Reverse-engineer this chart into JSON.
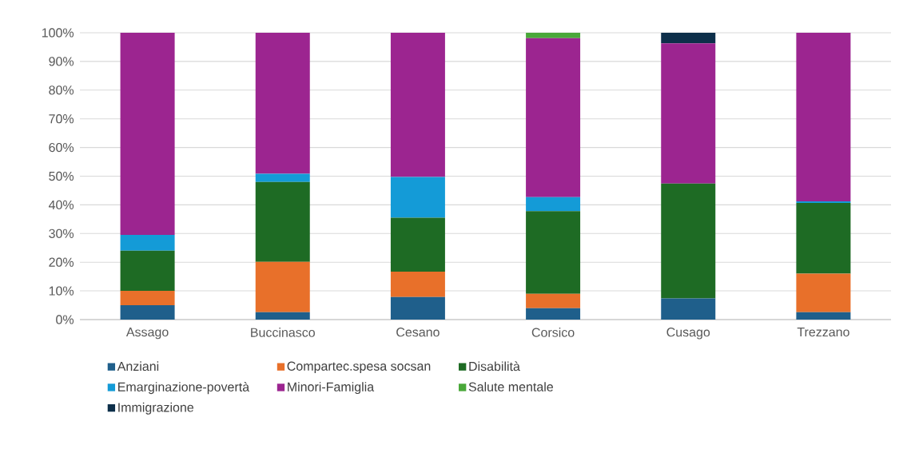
{
  "chart_data": {
    "type": "bar",
    "stacked": true,
    "categories": [
      "Assago",
      "Buccinasco",
      "Cesano",
      "Corsico",
      "Cusago",
      "Trezzano"
    ],
    "series": [
      {
        "name": "Anziani",
        "color": "#1f5f8b",
        "values": [
          5,
          2.6,
          7.9,
          4,
          7.4,
          2.6
        ]
      },
      {
        "name": "Compartec.spesa socsan",
        "color": "#e8702a",
        "values": [
          5,
          17.5,
          8.8,
          5,
          0,
          13.4
        ]
      },
      {
        "name": "Disabilità",
        "color": "#1e6b24",
        "values": [
          14,
          27.9,
          18.8,
          28.8,
          40,
          24.7
        ]
      },
      {
        "name": "Emarginazione-povertà",
        "color": "#149bd7",
        "values": [
          5.5,
          2.8,
          14.2,
          4.9,
          0,
          0.5
        ]
      },
      {
        "name": "Minori-Famiglia",
        "color": "#9c2590",
        "values": [
          70.5,
          49.2,
          50.3,
          55.4,
          48.9,
          58.8
        ]
      },
      {
        "name": "Salute mentale",
        "color": "#4aa83a",
        "values": [
          0,
          0,
          0,
          1.9,
          0,
          0
        ]
      },
      {
        "name": "Immigrazione",
        "color": "#0d2f4a",
        "values": [
          0,
          0,
          0,
          0,
          3.7,
          0
        ]
      }
    ],
    "ylim": [
      0,
      100
    ],
    "yticks": [
      {
        "value": 0,
        "label": "0%"
      },
      {
        "value": 10,
        "label": "10%"
      },
      {
        "value": 20,
        "label": "20%"
      },
      {
        "value": 30,
        "label": "30%"
      },
      {
        "value": 40,
        "label": "40%"
      },
      {
        "value": 50,
        "label": "50%"
      },
      {
        "value": 60,
        "label": "60%"
      },
      {
        "value": 70,
        "label": "70%"
      },
      {
        "value": 80,
        "label": "80%"
      },
      {
        "value": 90,
        "label": "90%"
      },
      {
        "value": 100,
        "label": "100%"
      }
    ],
    "grid": "y",
    "legend": "bottom"
  }
}
